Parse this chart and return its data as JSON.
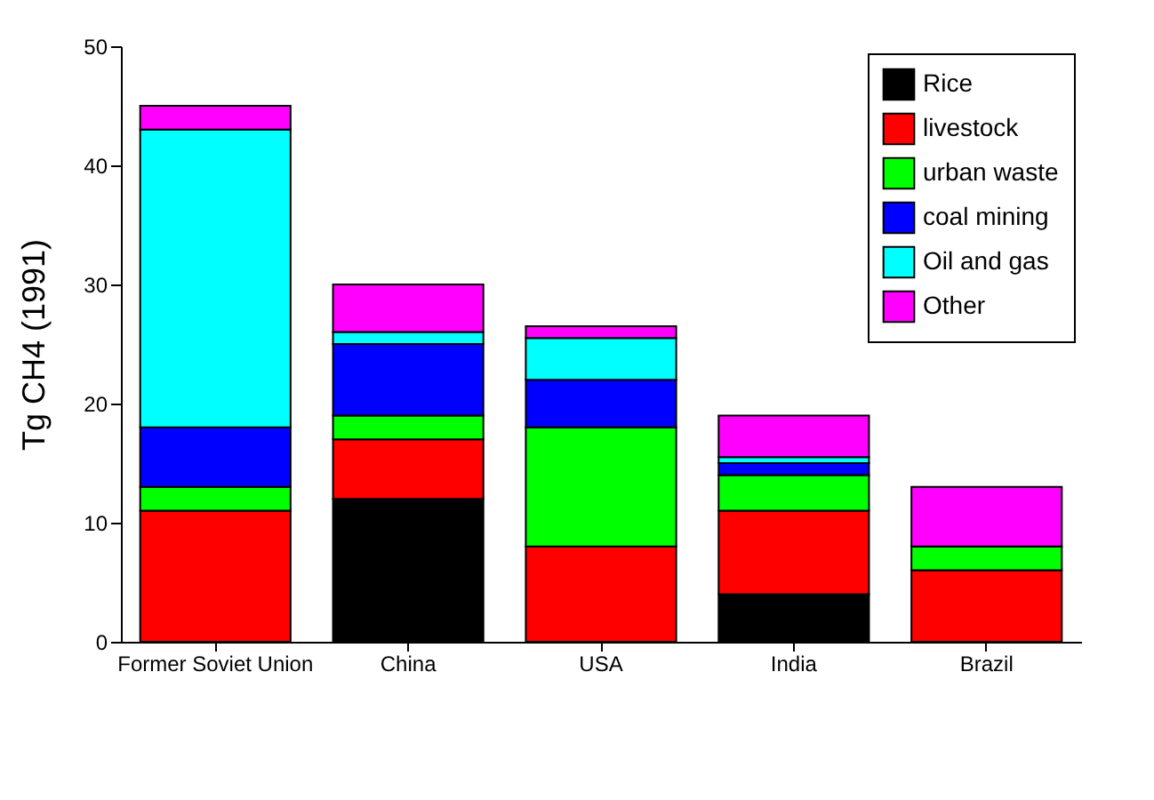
{
  "chart_data": {
    "type": "bar",
    "stacked": true,
    "ylabel": "Tg CH4 (1991)",
    "categories": [
      "Former Soviet Union",
      "China",
      "USA",
      "India",
      "Brazil"
    ],
    "series": [
      {
        "name": "Rice",
        "color": "#000000",
        "values": [
          0,
          12,
          0,
          4,
          0
        ]
      },
      {
        "name": "livestock",
        "color": "#ff0000",
        "values": [
          11,
          5,
          8,
          7,
          6
        ]
      },
      {
        "name": "urban waste",
        "color": "#00ff00",
        "values": [
          2,
          2,
          10,
          3,
          2
        ]
      },
      {
        "name": "coal mining",
        "color": "#0000ff",
        "values": [
          5,
          6,
          4,
          1,
          0
        ]
      },
      {
        "name": "Oil and gas",
        "color": "#00ffff",
        "values": [
          25,
          1,
          3.5,
          0.5,
          0
        ]
      },
      {
        "name": "Other",
        "color": "#ff00ff",
        "values": [
          2,
          4,
          1,
          3.5,
          5
        ]
      }
    ],
    "ylim": [
      0,
      50
    ],
    "yticks": [
      0,
      10,
      20,
      30,
      40,
      50
    ],
    "legend": "top right",
    "grid": false
  }
}
